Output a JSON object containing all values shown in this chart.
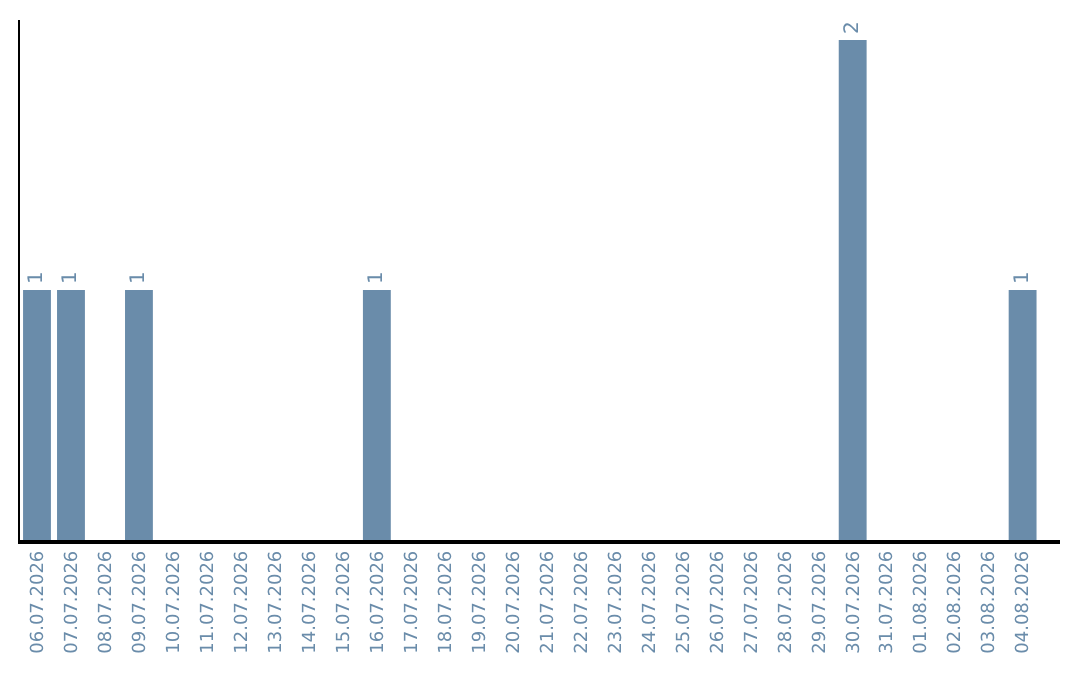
{
  "chart_data": {
    "type": "bar",
    "categories": [
      "06.07.2026",
      "07.07.2026",
      "08.07.2026",
      "09.07.2026",
      "10.07.2026",
      "11.07.2026",
      "12.07.2026",
      "13.07.2026",
      "14.07.2026",
      "15.07.2026",
      "16.07.2026",
      "17.07.2026",
      "18.07.2026",
      "19.07.2026",
      "20.07.2026",
      "21.07.2026",
      "22.07.2026",
      "23.07.2026",
      "24.07.2026",
      "25.07.2026",
      "26.07.2026",
      "27.07.2026",
      "28.07.2026",
      "29.07.2026",
      "30.07.2026",
      "31.07.2026",
      "01.08.2026",
      "02.08.2026",
      "03.08.2026",
      "04.08.2026"
    ],
    "values": [
      1,
      1,
      0,
      1,
      0,
      0,
      0,
      0,
      0,
      0,
      1,
      0,
      0,
      0,
      0,
      0,
      0,
      0,
      0,
      0,
      0,
      0,
      0,
      0,
      2,
      0,
      0,
      0,
      0,
      1
    ],
    "value_labels": [
      "1",
      "1",
      null,
      "1",
      null,
      null,
      null,
      null,
      null,
      null,
      "1",
      null,
      null,
      null,
      null,
      null,
      null,
      null,
      null,
      null,
      null,
      null,
      null,
      null,
      "2",
      null,
      null,
      null,
      null,
      "1"
    ],
    "color": "#6a8caa",
    "ylim": [
      0,
      2.08
    ],
    "tick_labels": "x",
    "legend": false
  }
}
